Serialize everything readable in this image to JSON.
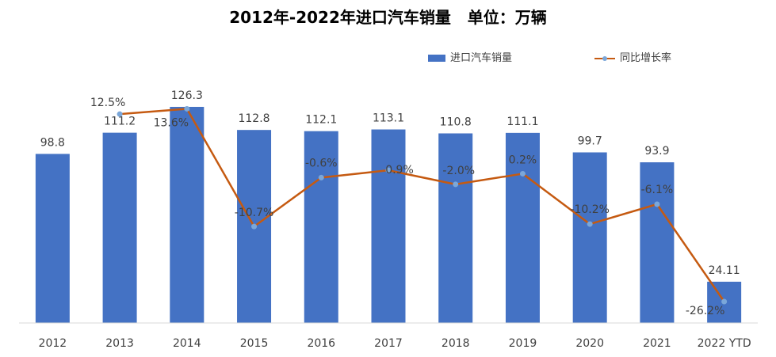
{
  "chart_data": {
    "type": "bar",
    "title": "2012年-2022年进口汽车销量   单位：万辆",
    "categories": [
      "2012",
      "2013",
      "2014",
      "2015",
      "2016",
      "2017",
      "2018",
      "2019",
      "2020",
      "2021",
      "2022 YTD"
    ],
    "series": [
      {
        "name": "进口汽车销量",
        "type": "bar",
        "color": "#4472C4",
        "values": [
          98.8,
          111.2,
          126.3,
          112.8,
          112.1,
          113.1,
          110.8,
          111.1,
          99.7,
          93.9,
          24.11
        ],
        "value_labels": [
          "98.8",
          "111.2",
          "126.3",
          "112.8",
          "112.1",
          "113.1",
          "110.8",
          "111.1",
          "99.7",
          "93.9",
          "24.11"
        ]
      },
      {
        "name": "同比增长率",
        "type": "line",
        "color": "#C55A11",
        "marker_color": "#7BA7D9",
        "values": [
          null,
          12.5,
          13.6,
          -10.7,
          -0.6,
          0.9,
          -2.0,
          0.2,
          -10.2,
          -6.1,
          -26.2
        ],
        "value_labels": [
          "",
          "12.5%",
          "13.6%",
          "-10.7%",
          "-0.6%",
          "0.9%",
          "-2.0%",
          "0.2%",
          "-10.2%",
          "-6.1%",
          "-26.2%"
        ]
      }
    ],
    "bar_axis_range": [
      0,
      126.3
    ],
    "line_axis_range": [
      -28,
      14
    ],
    "grid": false,
    "legend_position": "top-right"
  }
}
